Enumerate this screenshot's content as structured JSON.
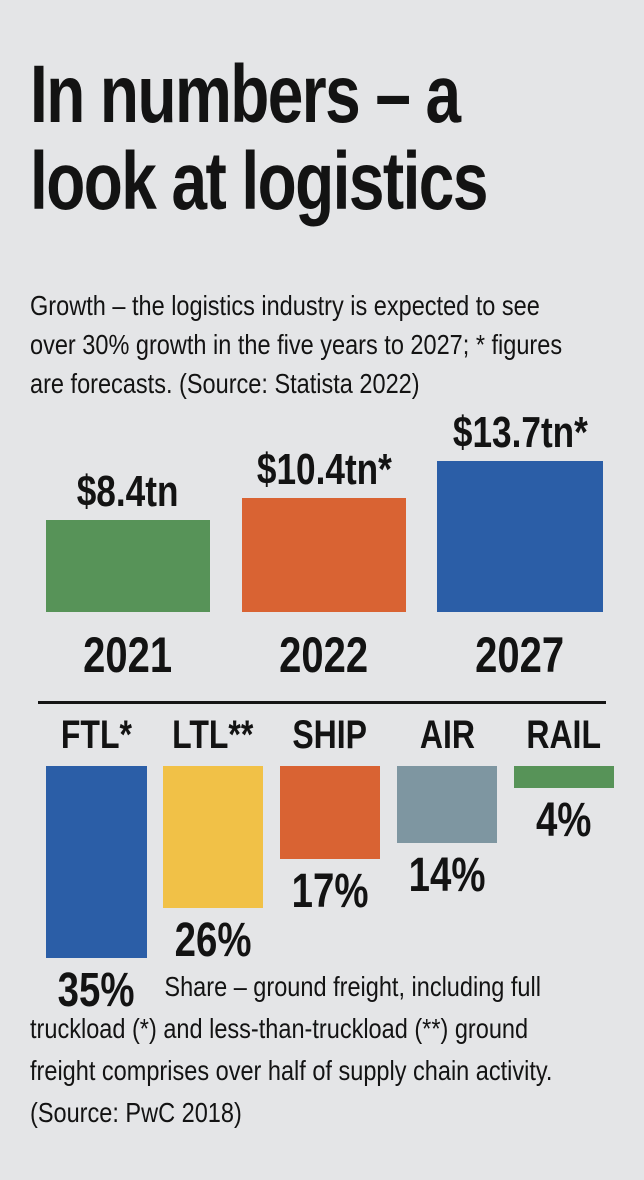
{
  "page": {
    "background": "#e4e5e7",
    "text_color": "#131313"
  },
  "title": "In numbers – a\nlook at logistics",
  "intro": "Growth – the logistics industry is expected to see\nover 30% growth in the five years to 2027; * figures\nare forecasts. (Source: Statista 2022)",
  "footer_note": "Share – ground freight, including full\ntruckload (*) and less-than-truckload (**) ground\nfreight comprises over half of supply chain activity.\n(Source: PwC 2018)",
  "chart_data": [
    {
      "type": "bar",
      "id": "logistics-market-size",
      "title": "Growth – the logistics industry is expected to see over 30% growth in the five years to 2027; * figures are forecasts.",
      "source": "Statista 2022",
      "categories": [
        "2021",
        "2022",
        "2027"
      ],
      "values": [
        8.4,
        10.4,
        13.7
      ],
      "unit": "trillion USD",
      "value_labels": [
        "$8.4tn",
        "$10.4tn*",
        "$13.7tn*"
      ],
      "bar_colors": [
        "#579358",
        "#d96333",
        "#2b5ea7"
      ],
      "ylim": [
        0,
        14
      ],
      "grid": false,
      "legend": "none"
    },
    {
      "type": "bar",
      "id": "freight-mode-share",
      "title": "Share – ground freight, including full truckload (*) and less-than-truckload (**) ground freight comprises over half of supply chain activity.",
      "source": "PwC 2018",
      "categories": [
        "FTL*",
        "LTL**",
        "SHIP",
        "AIR",
        "RAIL"
      ],
      "values": [
        35,
        26,
        17,
        14,
        4
      ],
      "unit": "%",
      "value_labels": [
        "35%",
        "26%",
        "17%",
        "14%",
        "4%"
      ],
      "bar_colors": [
        "#2b5ea7",
        "#f1c147",
        "#d96333",
        "#7e96a1",
        "#579358"
      ],
      "ylim": [
        0,
        35
      ],
      "grid": false,
      "legend": "none",
      "bars_hang_from_top": true
    }
  ]
}
